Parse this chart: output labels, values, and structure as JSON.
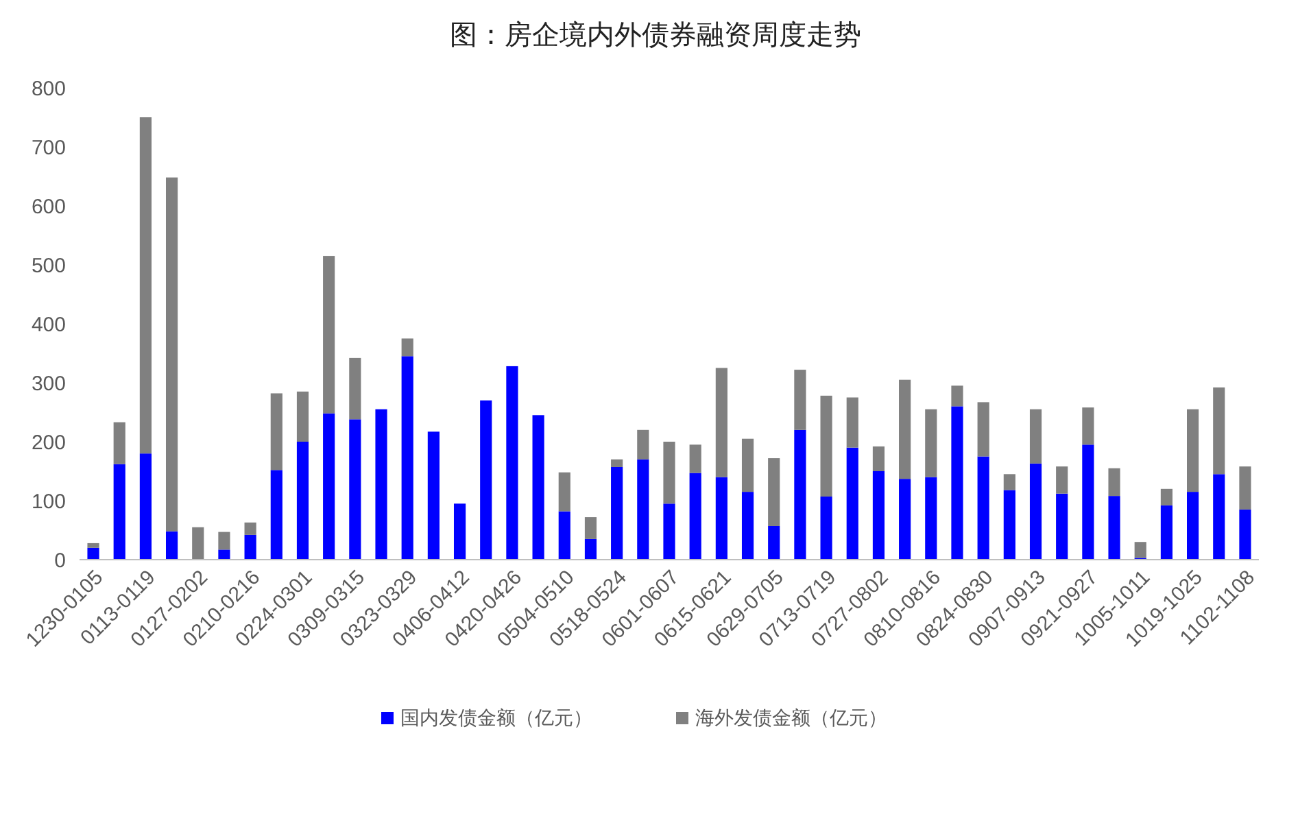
{
  "chart_data": {
    "type": "bar",
    "title": "图：房企境内外债券融资周度走势",
    "stacked": true,
    "legend": "bottom",
    "categories": [
      "1230-0105",
      null,
      "0113-0119",
      null,
      "0127-0202",
      null,
      "0210-0216",
      null,
      "0224-0301",
      null,
      "0309-0315",
      null,
      "0323-0329",
      null,
      "0406-0412",
      null,
      "0420-0426",
      null,
      "0504-0510",
      null,
      "0518-0524",
      null,
      "0601-0607",
      null,
      "0615-0621",
      null,
      "0629-0705",
      null,
      "0713-0719",
      null,
      "0727-0802",
      null,
      "0810-0816",
      null,
      "0824-0830",
      null,
      "0907-0913",
      null,
      "0921-0927",
      null,
      "1005-1011",
      null,
      "1019-1025",
      null,
      "1102-1108"
    ],
    "series": [
      {
        "name": "国内发债金额（亿元）",
        "color": "#0000ff",
        "values": [
          20,
          162,
          180,
          48,
          0,
          17,
          42,
          152,
          200,
          248,
          238,
          255,
          345,
          217,
          95,
          270,
          328,
          245,
          82,
          35,
          157,
          170,
          95,
          147,
          140,
          115,
          57,
          220,
          107,
          190,
          150,
          137,
          140,
          260,
          175,
          118,
          163,
          112,
          195,
          108,
          3,
          92,
          115,
          145,
          85
        ]
      },
      {
        "name": "海外发债金额（亿元）",
        "color": "#808080",
        "values": [
          8,
          71,
          570,
          600,
          55,
          30,
          21,
          130,
          85,
          267,
          104,
          0,
          30,
          0,
          0,
          0,
          0,
          0,
          66,
          37,
          13,
          50,
          105,
          48,
          185,
          90,
          115,
          102,
          171,
          85,
          42,
          168,
          115,
          35,
          92,
          27,
          92,
          46,
          63,
          47,
          27,
          28,
          140,
          147,
          73
        ]
      }
    ],
    "ylim": [
      0,
      800
    ],
    "yticks": [
      0,
      100,
      200,
      300,
      400,
      500,
      600,
      700,
      800
    ]
  }
}
